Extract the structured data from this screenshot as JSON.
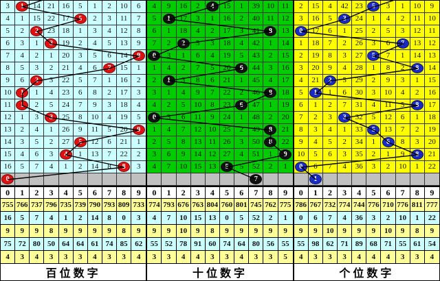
{
  "colors": {
    "grid_line": "#333333",
    "connector": "#000000",
    "ball_text": "#FFFFFF",
    "gray_row": "#C0C0C0",
    "stats_yellow": "#FFFF99",
    "stats_cyan": "#CCFFFF",
    "header_bg": "#FFFFFF",
    "hundreds_bg": "#CCFFFF",
    "tens_bg": "#00CC00",
    "units_bg": "#FFFF00",
    "hundreds_ball": "#DD1111",
    "tens_ball": "#111111",
    "units_ball": "#1A2BC4"
  },
  "chart_data": [
    {
      "type": "table",
      "title": "百位数字",
      "bg": "#CCFFFF",
      "ball_color": "#DD1111",
      "digits": [
        "0",
        "1",
        "2",
        "3",
        "4",
        "5",
        "6",
        "7",
        "8",
        "9"
      ],
      "rows": [
        {
          "cells": [
            "3",
            "1",
            "14",
            "21",
            "16",
            "5",
            "1",
            "2",
            "10",
            "6"
          ],
          "ball": 1
        },
        {
          "cells": [
            "4",
            "1",
            "15",
            "22",
            "17",
            "5",
            "2",
            "3",
            "11",
            "7"
          ],
          "ball": 5
        },
        {
          "cells": [
            "5",
            "2",
            "2",
            "23",
            "18",
            "1",
            "3",
            "4",
            "12",
            "8"
          ],
          "ball": 2
        },
        {
          "cells": [
            "6",
            "3",
            "1",
            "3",
            "19",
            "2",
            "4",
            "5",
            "13",
            "9"
          ],
          "ball": 3
        },
        {
          "cells": [
            "7",
            "4",
            "2",
            "1",
            "20",
            "3",
            "5",
            "6",
            "14",
            "9"
          ],
          "ball": 9
        },
        {
          "cells": [
            "8",
            "5",
            "3",
            "2",
            "21",
            "4",
            "6",
            "7",
            "15",
            "1"
          ],
          "ball": 7
        },
        {
          "cells": [
            "9",
            "6",
            "2",
            "3",
            "22",
            "5",
            "7",
            "1",
            "16",
            "2"
          ],
          "ball": 2
        },
        {
          "cells": [
            "10",
            "1",
            "1",
            "4",
            "23",
            "6",
            "8",
            "2",
            "17",
            "3"
          ],
          "ball": 1
        },
        {
          "cells": [
            "11",
            "1",
            "2",
            "5",
            "24",
            "7",
            "9",
            "3",
            "18",
            "4"
          ],
          "ball": 1
        },
        {
          "cells": [
            "12",
            "1",
            "3",
            "3",
            "25",
            "8",
            "10",
            "4",
            "19",
            "5"
          ],
          "ball": 3
        },
        {
          "cells": [
            "13",
            "2",
            "4",
            "1",
            "26",
            "9",
            "11",
            "5",
            "20",
            "9"
          ],
          "ball": 9
        },
        {
          "cells": [
            "14",
            "3",
            "5",
            "2",
            "27",
            "5",
            "12",
            "6",
            "21",
            "1"
          ],
          "ball": 5
        },
        {
          "cells": [
            "15",
            "4",
            "6",
            "3",
            "4",
            "1",
            "13",
            "7",
            "22",
            "2"
          ],
          "ball": 4
        },
        {
          "cells": [
            "16",
            "5",
            "7",
            "4",
            "1",
            "2",
            "14",
            "8",
            "8",
            "3"
          ],
          "ball": 8
        }
      ],
      "last_row_ball": 0,
      "stats": [
        [
          "755",
          "766",
          "737",
          "796",
          "735",
          "739",
          "790",
          "793",
          "809",
          "733"
        ],
        [
          "16",
          "5",
          "7",
          "4",
          "1",
          "2",
          "14",
          "8",
          "0",
          "3"
        ],
        [
          "9",
          "9",
          "9",
          "8",
          "9",
          "9",
          "9",
          "9",
          "8",
          "9"
        ],
        [
          "75",
          "72",
          "80",
          "50",
          "64",
          "64",
          "61",
          "74",
          "85",
          "62"
        ],
        [
          "4",
          "3",
          "4",
          "3",
          "3",
          "3",
          "4",
          "3",
          "3",
          "4"
        ]
      ]
    },
    {
      "type": "table",
      "title": "十位数字",
      "bg": "#00CC00",
      "ball_color": "#111111",
      "digits": [
        "0",
        "1",
        "2",
        "3",
        "4",
        "5",
        "6",
        "7",
        "8",
        "9"
      ],
      "rows": [
        {
          "cells": [
            "4",
            "9",
            "16",
            "2",
            "4",
            "15",
            "1",
            "39",
            "10",
            "11"
          ],
          "ball": 4
        },
        {
          "cells": [
            "5",
            "1",
            "17",
            "3",
            "1",
            "16",
            "2",
            "40",
            "11",
            "12"
          ],
          "ball": 1
        },
        {
          "cells": [
            "6",
            "1",
            "18",
            "4",
            "2",
            "17",
            "3",
            "41",
            "8",
            "13"
          ],
          "ball": 8
        },
        {
          "cells": [
            "7",
            "2",
            "2",
            "5",
            "3",
            "18",
            "4",
            "42",
            "1",
            "14"
          ],
          "ball": 2
        },
        {
          "cells": [
            "0",
            "3",
            "1",
            "6",
            "4",
            "19",
            "5",
            "43",
            "2",
            "15"
          ],
          "ball": 0
        },
        {
          "cells": [
            "1",
            "4",
            "2",
            "7",
            "5",
            "20",
            "6",
            "44",
            "3",
            "16"
          ],
          "ball": 6
        },
        {
          "cells": [
            "2",
            "1",
            "3",
            "8",
            "6",
            "21",
            "1",
            "45",
            "4",
            "17"
          ],
          "ball": 1
        },
        {
          "cells": [
            "3",
            "1",
            "4",
            "9",
            "7",
            "22",
            "2",
            "46",
            "8",
            "18"
          ],
          "ball": 8
        },
        {
          "cells": [
            "4",
            "2",
            "5",
            "10",
            "8",
            "23",
            "6",
            "47",
            "1",
            "19"
          ],
          "ball": 6
        },
        {
          "cells": [
            "0",
            "3",
            "6",
            "11",
            "9",
            "24",
            "1",
            "48",
            "2",
            "20"
          ],
          "ball": 0
        },
        {
          "cells": [
            "1",
            "4",
            "7",
            "12",
            "10",
            "25",
            "2",
            "49",
            "8",
            "21"
          ],
          "ball": 8
        },
        {
          "cells": [
            "2",
            "5",
            "8",
            "13",
            "11",
            "26",
            "3",
            "50",
            "8",
            "22"
          ],
          "ball": 8
        },
        {
          "cells": [
            "3",
            "6",
            "9",
            "14",
            "12",
            "27",
            "4",
            "51",
            "1",
            "9"
          ],
          "ball": 9
        },
        {
          "cells": [
            "4",
            "7",
            "10",
            "15",
            "13",
            "5",
            "5",
            "52",
            "2",
            "1"
          ],
          "ball": 5
        }
      ],
      "last_row_ball": 7,
      "stats": [
        [
          "774",
          "793",
          "676",
          "763",
          "804",
          "760",
          "801",
          "745",
          "762",
          "775"
        ],
        [
          "4",
          "7",
          "10",
          "15",
          "13",
          "0",
          "5",
          "52",
          "2",
          "1"
        ],
        [
          "9",
          "9",
          "10",
          "9",
          "8",
          "9",
          "9",
          "9",
          "9",
          "9"
        ],
        [
          "55",
          "52",
          "78",
          "91",
          "60",
          "74",
          "64",
          "80",
          "56",
          "55"
        ],
        [
          "3",
          "3",
          "4",
          "4",
          "3",
          "3",
          "4",
          "3",
          "3",
          "5"
        ]
      ]
    },
    {
      "type": "table",
      "title": "个位数字",
      "bg": "#FFFF00",
      "ball_color": "#1A2BC4",
      "digits": [
        "0",
        "1",
        "2",
        "3",
        "4",
        "5",
        "6",
        "7",
        "8",
        "9"
      ],
      "rows": [
        {
          "cells": [
            "2",
            "15",
            "4",
            "42",
            "23",
            "5",
            "3",
            "1",
            "10",
            "9"
          ],
          "ball": 5
        },
        {
          "cells": [
            "3",
            "16",
            "5",
            "3",
            "24",
            "1",
            "4",
            "2",
            "11",
            "10"
          ],
          "ball": 3
        },
        {
          "cells": [
            "0",
            "17",
            "6",
            "1",
            "25",
            "2",
            "5",
            "3",
            "12",
            "11"
          ],
          "ball": 0
        },
        {
          "cells": [
            "1",
            "18",
            "7",
            "2",
            "26",
            "3",
            "6",
            "7",
            "13",
            "12"
          ],
          "ball": 7
        },
        {
          "cells": [
            "2",
            "19",
            "8",
            "3",
            "27",
            "5",
            "7",
            "1",
            "14",
            "13"
          ],
          "ball": 5
        },
        {
          "cells": [
            "3",
            "20",
            "9",
            "4",
            "28",
            "1",
            "8",
            "2",
            "8",
            "14"
          ],
          "ball": 8
        },
        {
          "cells": [
            "4",
            "21",
            "2",
            "5",
            "29",
            "2",
            "9",
            "3",
            "1",
            "15"
          ],
          "ball": 2
        },
        {
          "cells": [
            "5",
            "1",
            "1",
            "6",
            "30",
            "3",
            "10",
            "4",
            "2",
            "16"
          ],
          "ball": 1
        },
        {
          "cells": [
            "6",
            "1",
            "2",
            "7",
            "31",
            "4",
            "11",
            "5",
            "8",
            "17"
          ],
          "ball": 8
        },
        {
          "cells": [
            "7",
            "2",
            "3",
            "3",
            "32",
            "5",
            "12",
            "6",
            "1",
            "18"
          ],
          "ball": 3
        },
        {
          "cells": [
            "8",
            "3",
            "4",
            "1",
            "33",
            "5",
            "13",
            "7",
            "2",
            "19"
          ],
          "ball": 5
        },
        {
          "cells": [
            "9",
            "4",
            "5",
            "2",
            "34",
            "1",
            "6",
            "8",
            "3",
            "20"
          ],
          "ball": 6
        },
        {
          "cells": [
            "10",
            "5",
            "6",
            "3",
            "35",
            "2",
            "1",
            "9",
            "8",
            "21"
          ],
          "ball": 8
        },
        {
          "cells": [
            "0",
            "6",
            "7",
            "4",
            "36",
            "3",
            "2",
            "10",
            "1",
            "22"
          ],
          "ball": 0
        }
      ],
      "last_row_ball": 1,
      "stats": [
        [
          "786",
          "767",
          "732",
          "774",
          "744",
          "776",
          "710",
          "776",
          "811",
          "777"
        ],
        [
          "0",
          "6",
          "7",
          "4",
          "36",
          "3",
          "2",
          "10",
          "1",
          "22"
        ],
        [
          "9",
          "9",
          "10",
          "9",
          "9",
          "9",
          "10",
          "9",
          "8",
          "9"
        ],
        [
          "55",
          "98",
          "62",
          "71",
          "89",
          "68",
          "71",
          "55",
          "61",
          "54"
        ],
        [
          "4",
          "3",
          "3",
          "3",
          "4",
          "4",
          "4",
          "3",
          "3",
          "4"
        ]
      ]
    }
  ]
}
